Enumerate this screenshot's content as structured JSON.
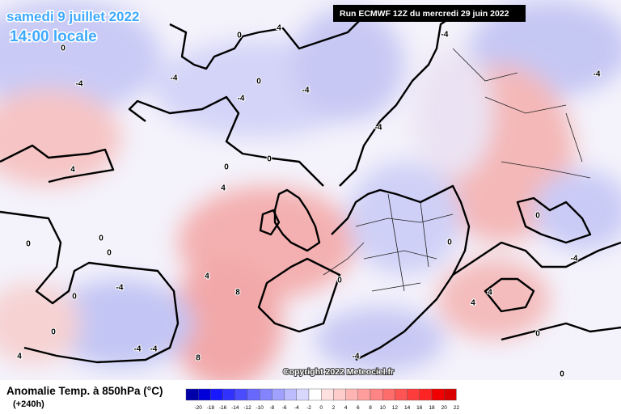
{
  "header": {
    "date": "samedi 9 juillet 2022",
    "time": "14:00 locale",
    "run": "Run ECMWF 12Z du mercredi 29 juin 2022"
  },
  "copyright": "Copyright 2022 Meteociel.fr",
  "legend": {
    "title": "Anomalie Temp. à 850hPa (°C)",
    "lead": "(+240h)",
    "ticks": [
      -20,
      -18,
      -16,
      -14,
      -12,
      -10,
      -8,
      -6,
      -4,
      -2,
      0,
      2,
      4,
      6,
      8,
      10,
      12,
      14,
      16,
      18,
      20,
      22
    ]
  },
  "contour_labels": [
    "0",
    "0",
    "0",
    "0",
    "0",
    "0",
    "4",
    "4",
    "4",
    "8",
    "8",
    "-4",
    "-4",
    "-4",
    "-4",
    "-4",
    "-4",
    "-4",
    "-4",
    "0",
    "0",
    "0",
    "0",
    "0",
    "4",
    "4",
    "4",
    "0",
    "0",
    "4",
    "0",
    "-4",
    "0",
    "-4",
    "-4",
    "-4"
  ]
}
